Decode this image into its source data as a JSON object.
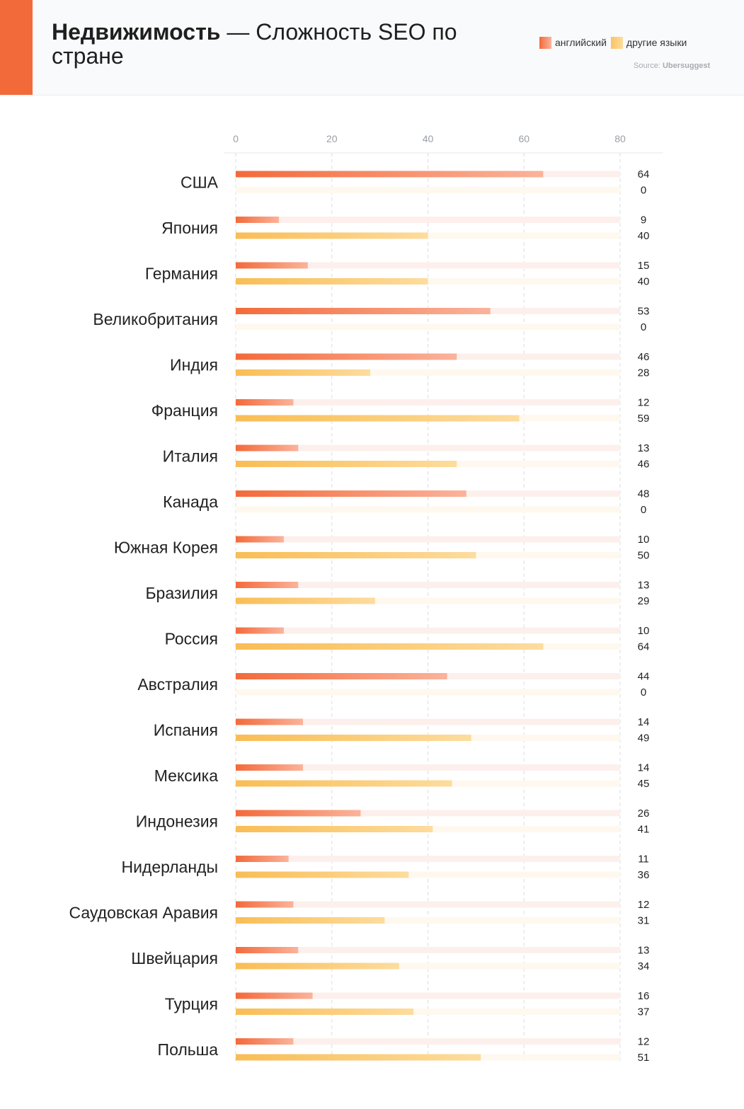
{
  "header": {
    "title_bold": "Недвижимость",
    "title_rest": " — Сложность SEO по стране",
    "accent_color": "#f36a3a",
    "legend": [
      {
        "label": "английский",
        "color": "#f36a3a"
      },
      {
        "label": "другие языки",
        "color": "#fbc465"
      }
    ],
    "source_prefix": "Source: ",
    "source_name": "Ubersuggest"
  },
  "chart_data": {
    "type": "bar",
    "orientation": "horizontal",
    "title": "Недвижимость — Сложность SEO по стране",
    "xlim": [
      0,
      80
    ],
    "xticks": [
      "0",
      "20",
      "40",
      "60",
      "80"
    ],
    "grid": true,
    "legend_position": "top-right",
    "categories": [
      "США",
      "Япония",
      "Германия",
      "Великобритания",
      "Индия",
      "Франция",
      "Италия",
      "Канада",
      "Южная Корея",
      "Бразилия",
      "Россия",
      "Австралия",
      "Испания",
      "Мексика",
      "Индонезия",
      "Нидерланды",
      "Саудовская Аравия",
      "Швейцария",
      "Турция",
      "Польша"
    ],
    "series": [
      {
        "name": "английский",
        "color": "#f36a3a",
        "values": [
          64,
          9,
          15,
          53,
          46,
          12,
          13,
          48,
          10,
          13,
          10,
          44,
          14,
          14,
          26,
          11,
          12,
          13,
          16,
          12
        ]
      },
      {
        "name": "другие языки",
        "color": "#fbc465",
        "values": [
          0,
          40,
          40,
          0,
          28,
          59,
          46,
          0,
          50,
          29,
          64,
          0,
          49,
          45,
          41,
          36,
          31,
          34,
          37,
          51
        ]
      }
    ]
  }
}
